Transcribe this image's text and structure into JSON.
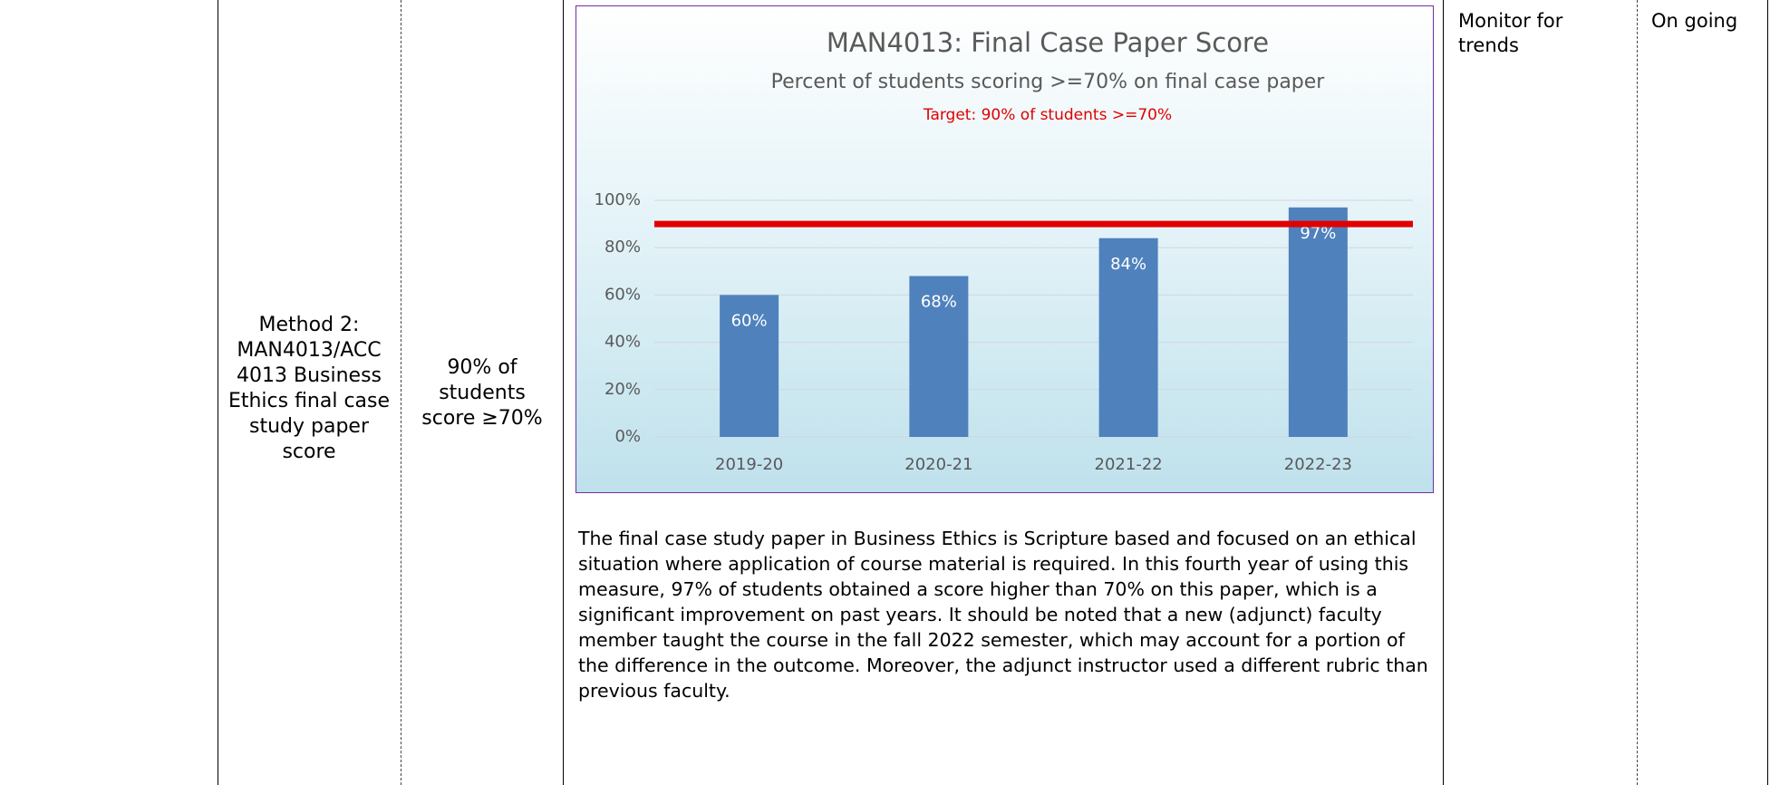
{
  "table": {
    "method": "Method 2: MAN4013/ACC 4013 Business Ethics final case study paper score",
    "criterion": "90% of students score ≥70%",
    "analysis": "The final case study paper in Business Ethics is Scripture based and focused on an ethical situation where application of course material is required. In this fourth year of using this measure, 97% of students obtained a score higher than 70% on this paper, which is a significant improvement on past years.  It should be noted that a new (adjunct) faculty member taught the course in the fall 2022 semester, which may account for a portion of the difference in the outcome.  Moreover, the adjunct instructor used a different rubric than previous faculty.",
    "action": "Monitor for trends",
    "timeline": "On going"
  },
  "chart_data": {
    "type": "bar",
    "title": "MAN4013: Final Case Paper Score",
    "subtitle": "Percent of students scoring >=70% on final case paper",
    "annotation": "Target: 90% of students >=70%",
    "categories": [
      "2019-20",
      "2020-21",
      "2021-22",
      "2022-23"
    ],
    "values": [
      60,
      68,
      84,
      97
    ],
    "value_labels": [
      "60%",
      "68%",
      "84%",
      "97%"
    ],
    "color": "#4f81bd",
    "target": 90,
    "target_color": "#e00000",
    "ylim": [
      0,
      100
    ],
    "yticks": [
      {
        "value": 0,
        "label": "0%"
      },
      {
        "value": 20,
        "label": "20%"
      },
      {
        "value": 40,
        "label": "40%"
      },
      {
        "value": 60,
        "label": "60%"
      },
      {
        "value": 80,
        "label": "80%"
      },
      {
        "value": 100,
        "label": "100%"
      }
    ],
    "grid": true
  }
}
